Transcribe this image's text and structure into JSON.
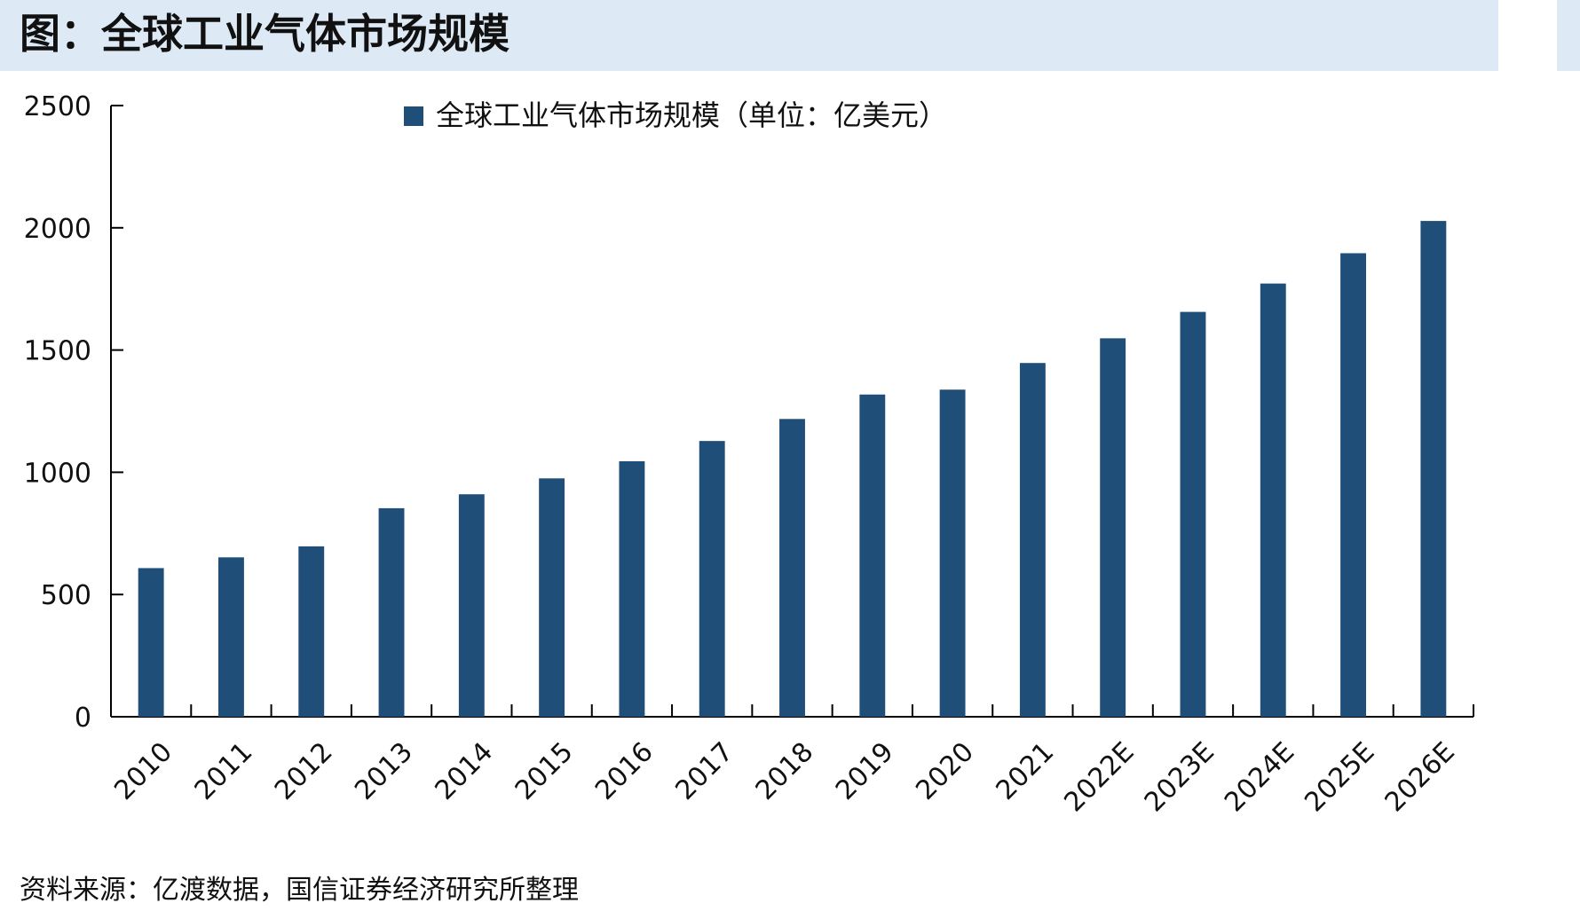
{
  "header": {
    "title": "图：全球工业气体市场规模"
  },
  "source": "资料来源：亿渡数据，国信证券经济研究所整理",
  "colors": {
    "bar": "#1f4e79",
    "header_band": "#dde9f5",
    "axis": "#000000"
  },
  "chart_data": {
    "type": "bar",
    "title": "",
    "xlabel": "",
    "ylabel": "",
    "categories": [
      "2010",
      "2011",
      "2012",
      "2013",
      "2014",
      "2015",
      "2016",
      "2017",
      "2018",
      "2019",
      "2020",
      "2021",
      "2022E",
      "2023E",
      "2024E",
      "2025E",
      "2026E"
    ],
    "series": [
      {
        "name": "全球工业气体市场规模（单位：亿美元）",
        "values": [
          608,
          652,
          697,
          853,
          910,
          975,
          1045,
          1128,
          1218,
          1318,
          1338,
          1447,
          1548,
          1656,
          1772,
          1896,
          2028
        ]
      }
    ],
    "ylim": [
      0,
      2500
    ],
    "yticks": [
      "0",
      "500",
      "1000",
      "1500",
      "2000",
      "2500"
    ],
    "grid": false,
    "legend_position": "top-center"
  }
}
